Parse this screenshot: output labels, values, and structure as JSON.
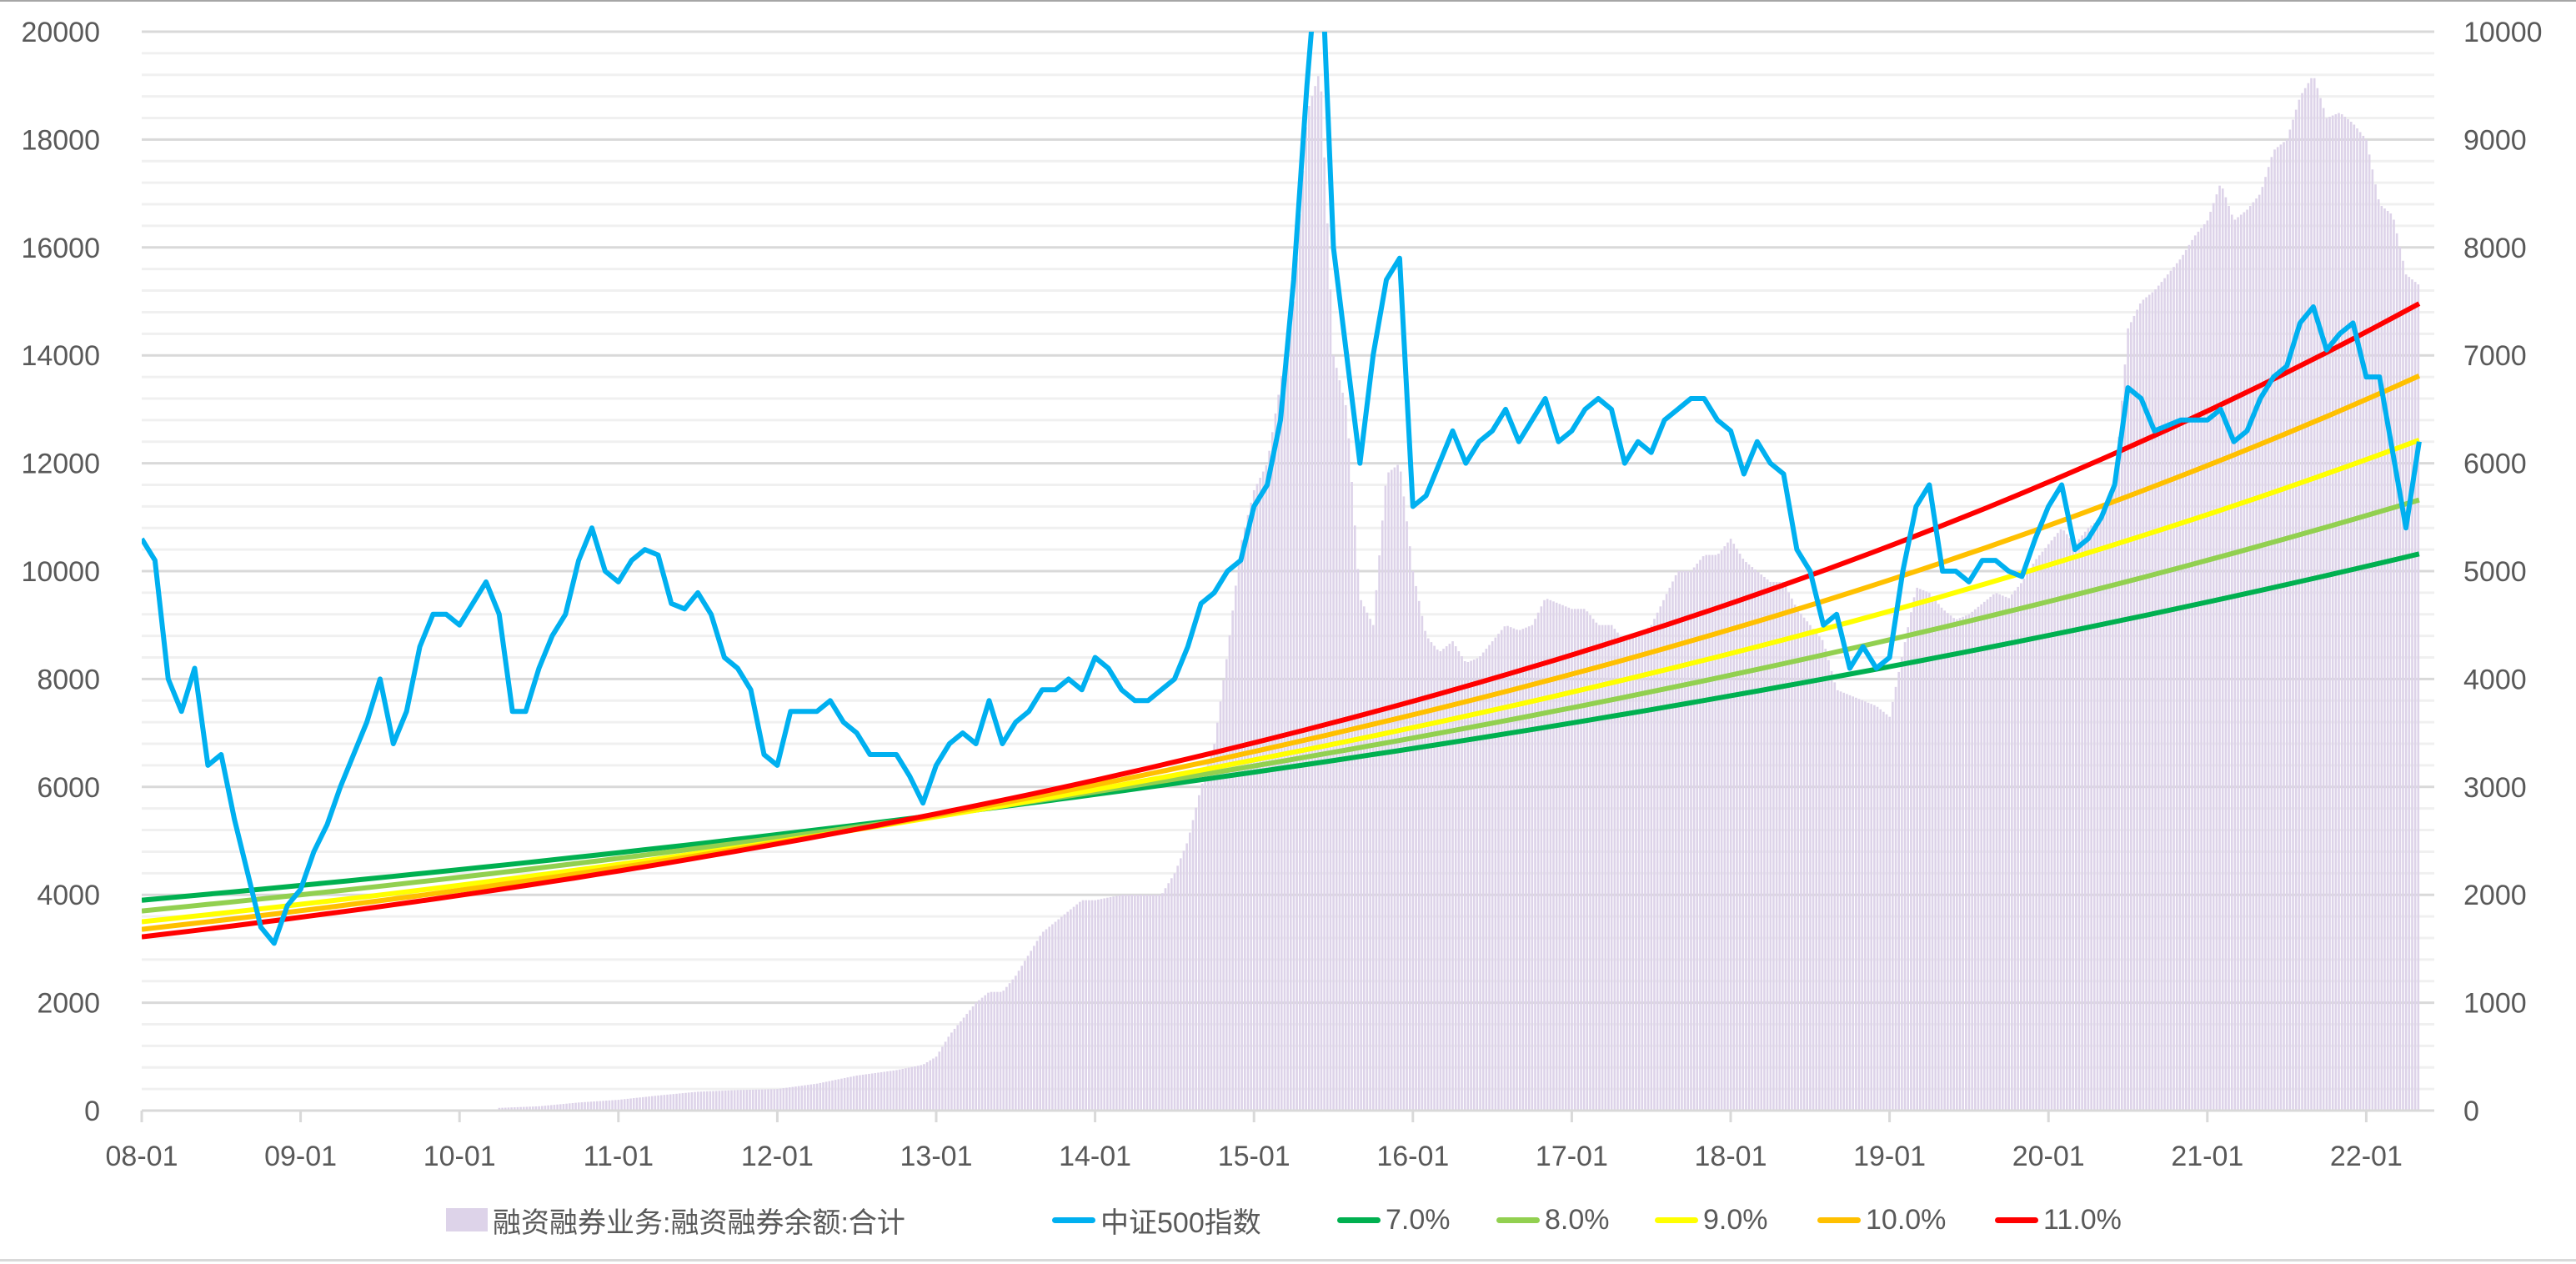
{
  "chart_data": {
    "type": "bar+line",
    "title": "",
    "x_axis": {
      "tick_labels": [
        "08-01",
        "09-01",
        "10-01",
        "11-01",
        "12-01",
        "13-01",
        "14-01",
        "15-01",
        "16-01",
        "17-01",
        "18-01",
        "19-01",
        "20-01",
        "21-01",
        "22-01"
      ],
      "range": [
        "08-01",
        "22-05"
      ]
    },
    "y_left": {
      "min": 0,
      "max": 20000,
      "tick_labels": [
        "0",
        "2000",
        "4000",
        "6000",
        "8000",
        "10000",
        "12000",
        "14000",
        "16000",
        "18000",
        "20000"
      ],
      "grid": true
    },
    "y_right": {
      "min": 0,
      "max": 10000,
      "tick_labels": [
        "0",
        "1000",
        "2000",
        "3000",
        "4000",
        "5000",
        "6000",
        "7000",
        "8000",
        "9000",
        "10000"
      ]
    },
    "legend_position": "bottom",
    "colors": {
      "margin": "#ddd3e9",
      "index": "#00b0f0",
      "g7": "#00b050",
      "g8": "#92d050",
      "g9": "#ffff00",
      "g10": "#ffc000",
      "g11": "#ff0000",
      "grid_major": "#d9d9d9",
      "grid_minor": "#f0f0f0",
      "text": "#595959"
    },
    "margin_series": {
      "name": "融资融券业务:融资融券余额:合计",
      "axis": "left",
      "x": [
        "10-04",
        "10-07",
        "10-10",
        "11-01",
        "11-04",
        "11-07",
        "11-10",
        "12-01",
        "12-04",
        "12-07",
        "12-10",
        "12-12",
        "13-01",
        "13-02",
        "13-03",
        "13-04",
        "13-05",
        "13-06",
        "13-07",
        "13-08",
        "13-09",
        "13-10",
        "13-11",
        "13-12",
        "14-01",
        "14-03",
        "14-06",
        "14-07",
        "14-08",
        "14-09",
        "14-10",
        "14-11",
        "14-12",
        "15-01",
        "15-02",
        "15-03",
        "15-04",
        "15-05",
        "15-06",
        "15-07",
        "15-08",
        "15-09",
        "15-10",
        "15-11",
        "15-12",
        "16-01",
        "16-02",
        "16-03",
        "16-04",
        "16-05",
        "16-06",
        "16-07",
        "16-08",
        "16-09",
        "16-10",
        "16-11",
        "16-12",
        "17-01",
        "17-02",
        "17-03",
        "17-04",
        "17-05",
        "17-06",
        "17-07",
        "17-08",
        "17-09",
        "17-10",
        "17-11",
        "17-12",
        "18-01",
        "18-02",
        "18-03",
        "18-04",
        "18-05",
        "18-06",
        "18-07",
        "18-08",
        "18-09",
        "18-10",
        "18-11",
        "18-12",
        "19-01",
        "19-02",
        "19-03",
        "19-04",
        "19-05",
        "19-06",
        "19-07",
        "19-08",
        "19-09",
        "19-10",
        "19-11",
        "19-12",
        "20-01",
        "20-02",
        "20-03",
        "20-04",
        "20-05",
        "20-06",
        "20-07",
        "20-08",
        "20-09",
        "20-10",
        "20-11",
        "20-12",
        "21-01",
        "21-02",
        "21-03",
        "21-04",
        "21-05",
        "21-06",
        "21-07",
        "21-08",
        "21-09",
        "21-10",
        "21-11",
        "21-12",
        "22-01",
        "22-02",
        "22-03",
        "22-04",
        "22-05"
      ],
      "values": [
        50,
        80,
        150,
        200,
        280,
        350,
        380,
        400,
        500,
        650,
        750,
        850,
        1000,
        1400,
        1700,
        2000,
        2200,
        2200,
        2500,
        2900,
        3300,
        3500,
        3700,
        3900,
        3900,
        4000,
        4000,
        4400,
        5000,
        6000,
        6800,
        8500,
        10500,
        11500,
        12000,
        13500,
        15000,
        18500,
        19300,
        14000,
        13000,
        9500,
        9000,
        11800,
        12000,
        10000,
        8800,
        8500,
        8700,
        8300,
        8400,
        8700,
        9000,
        8900,
        9000,
        9500,
        9400,
        9300,
        9300,
        9000,
        9000,
        8700,
        8800,
        9000,
        9500,
        10000,
        10000,
        10300,
        10300,
        10600,
        10200,
        10000,
        9800,
        9800,
        9300,
        9000,
        8700,
        7800,
        7700,
        7600,
        7500,
        7300,
        8500,
        9700,
        9600,
        9300,
        9100,
        9200,
        9400,
        9600,
        9500,
        9800,
        10200,
        10500,
        10800,
        10500,
        10800,
        11000,
        11600,
        14500,
        15000,
        15200,
        15500,
        15800,
        16200,
        16500,
        17200,
        16500,
        16700,
        17000,
        17800,
        18000,
        18800,
        19200,
        18400,
        18500,
        18300,
        18000,
        16800,
        16600,
        15500,
        15300
      ]
    },
    "index_series": {
      "name": "中证500指数",
      "axis": "right",
      "x": [
        "08-01",
        "08-02",
        "08-03",
        "08-04",
        "08-05",
        "08-06",
        "08-07",
        "08-08",
        "08-09",
        "08-10",
        "08-11",
        "08-12",
        "09-01",
        "09-02",
        "09-03",
        "09-04",
        "09-05",
        "09-06",
        "09-07",
        "09-08",
        "09-09",
        "09-10",
        "09-11",
        "09-12",
        "10-01",
        "10-02",
        "10-03",
        "10-04",
        "10-05",
        "10-06",
        "10-07",
        "10-08",
        "10-09",
        "10-10",
        "10-11",
        "10-12",
        "11-01",
        "11-02",
        "11-03",
        "11-04",
        "11-05",
        "11-06",
        "11-07",
        "11-08",
        "11-09",
        "11-10",
        "11-11",
        "11-12",
        "12-01",
        "12-02",
        "12-03",
        "12-04",
        "12-05",
        "12-06",
        "12-07",
        "12-08",
        "12-09",
        "12-10",
        "12-11",
        "12-12",
        "13-01",
        "13-02",
        "13-03",
        "13-04",
        "13-05",
        "13-06",
        "13-07",
        "13-08",
        "13-09",
        "13-10",
        "13-11",
        "13-12",
        "14-01",
        "14-02",
        "14-03",
        "14-04",
        "14-05",
        "14-06",
        "14-07",
        "14-08",
        "14-09",
        "14-10",
        "14-11",
        "14-12",
        "15-01",
        "15-02",
        "15-03",
        "15-04",
        "15-05",
        "15-06",
        "15-07",
        "15-08",
        "15-09",
        "15-10",
        "15-11",
        "15-12",
        "16-01",
        "16-02",
        "16-03",
        "16-04",
        "16-05",
        "16-06",
        "16-07",
        "16-08",
        "16-09",
        "16-10",
        "16-11",
        "16-12",
        "17-01",
        "17-02",
        "17-03",
        "17-04",
        "17-05",
        "17-06",
        "17-07",
        "17-08",
        "17-09",
        "17-10",
        "17-11",
        "17-12",
        "18-01",
        "18-02",
        "18-03",
        "18-04",
        "18-05",
        "18-06",
        "18-07",
        "18-08",
        "18-09",
        "18-10",
        "18-11",
        "18-12",
        "19-01",
        "19-02",
        "19-03",
        "19-04",
        "19-05",
        "19-06",
        "19-07",
        "19-08",
        "19-09",
        "19-10",
        "19-11",
        "19-12",
        "20-01",
        "20-02",
        "20-03",
        "20-04",
        "20-05",
        "20-06",
        "20-07",
        "20-08",
        "20-09",
        "20-10",
        "20-11",
        "20-12",
        "21-01",
        "21-02",
        "21-03",
        "21-04",
        "21-05",
        "21-06",
        "21-07",
        "21-08",
        "21-09",
        "21-10",
        "21-11",
        "21-12",
        "22-01",
        "22-02",
        "22-03",
        "22-04",
        "22-05"
      ],
      "values": [
        5300,
        5100,
        4000,
        3700,
        4100,
        3200,
        3300,
        2700,
        2200,
        1700,
        1550,
        1900,
        2050,
        2400,
        2650,
        3000,
        3300,
        3600,
        4000,
        3400,
        3700,
        4300,
        4600,
        4600,
        4500,
        4700,
        4900,
        4600,
        3700,
        3700,
        4100,
        4400,
        4600,
        5100,
        5400,
        5000,
        4900,
        5100,
        5200,
        5150,
        4700,
        4650,
        4800,
        4600,
        4200,
        4100,
        3900,
        3300,
        3200,
        3700,
        3700,
        3700,
        3800,
        3600,
        3500,
        3300,
        3300,
        3300,
        3100,
        2850,
        3200,
        3400,
        3500,
        3400,
        3800,
        3400,
        3600,
        3700,
        3900,
        3900,
        4000,
        3900,
        4200,
        4100,
        3900,
        3800,
        3800,
        3900,
        4000,
        4300,
        4700,
        4800,
        5000,
        5100,
        5600,
        5800,
        6400,
        7700,
        9500,
        11000,
        8000,
        7000,
        6000,
        7000,
        7700,
        7900,
        5600,
        5700,
        6000,
        6300,
        6000,
        6200,
        6300,
        6500,
        6200,
        6400,
        6600,
        6200,
        6300,
        6500,
        6600,
        6500,
        6000,
        6200,
        6100,
        6400,
        6500,
        6600,
        6600,
        6400,
        6300,
        5900,
        6200,
        6000,
        5900,
        5200,
        5000,
        4500,
        4600,
        4100,
        4300,
        4100,
        4200,
        5000,
        5600,
        5800,
        5000,
        5000,
        4900,
        5100,
        5100,
        5000,
        4950,
        5300,
        5600,
        5800,
        5200,
        5300,
        5500,
        5800,
        6700,
        6600,
        6300,
        6350,
        6400,
        6400,
        6400,
        6500,
        6200,
        6300,
        6600,
        6800,
        6900,
        7300,
        7450,
        7050,
        7200,
        7300,
        6800,
        6800,
        6100,
        5400,
        6200
      ]
    },
    "growth_series": [
      {
        "key": "g7",
        "name": "7.0%",
        "axis": "right",
        "x": [
          "08-01",
          "22-05"
        ],
        "values": [
          1950,
          5160
        ]
      },
      {
        "key": "g8",
        "name": "8.0%",
        "axis": "right",
        "x": [
          "08-01",
          "22-05"
        ],
        "values": [
          1850,
          5660
        ]
      },
      {
        "key": "g9",
        "name": "9.0%",
        "axis": "right",
        "x": [
          "08-01",
          "22-05"
        ],
        "values": [
          1750,
          6215
        ]
      },
      {
        "key": "g10",
        "name": "10.0%",
        "axis": "right",
        "x": [
          "08-01",
          "22-05"
        ],
        "values": [
          1680,
          6810
        ]
      },
      {
        "key": "g11",
        "name": "11.0%",
        "axis": "right",
        "x": [
          "08-01",
          "22-05"
        ],
        "values": [
          1610,
          7480
        ]
      }
    ]
  }
}
